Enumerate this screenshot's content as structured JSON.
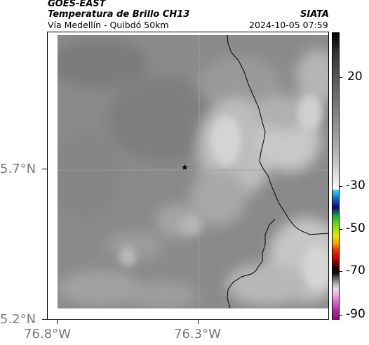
{
  "header": {
    "satellite": "GOES-EAST",
    "product": "Temperatura de Brillo CH13",
    "region": "Vía Medellín - Quibdó 50km",
    "org": "SIATA",
    "datetime": "2024-10-05 07:59"
  },
  "axes": {
    "y_ticks": [
      "5.7°N",
      "5.2°N"
    ],
    "x_ticks": [
      "76.8°W",
      "76.3°W"
    ]
  },
  "colorbar": {
    "labels": [
      "20",
      "-30",
      "-50",
      "-70",
      "-90"
    ]
  },
  "colors": {
    "background": "#808080",
    "cloud_light": "#d8d8d8",
    "border_line": "#000000"
  }
}
